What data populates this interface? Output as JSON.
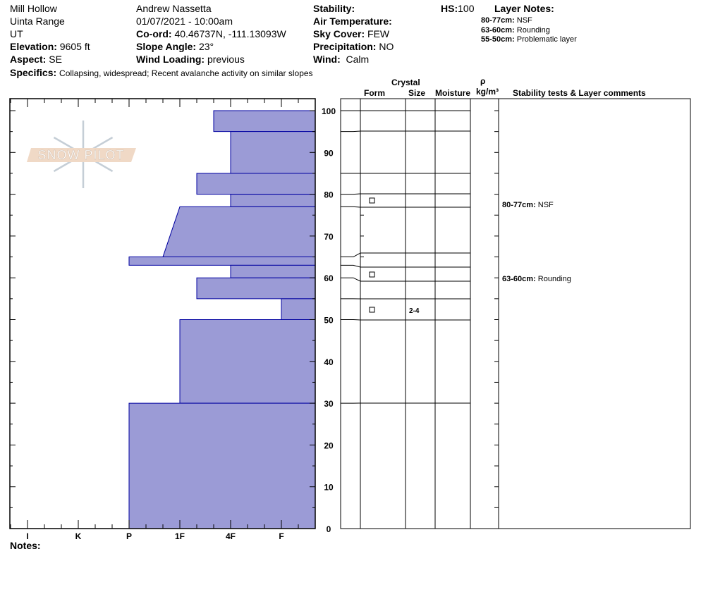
{
  "header": {
    "location": "Mill Hollow",
    "range": "Uinta Range",
    "state": "UT",
    "elevation_label": "Elevation:",
    "elevation": "9605 ft",
    "aspect_label": "Aspect:",
    "aspect": "SE",
    "observer": "Andrew Nassetta",
    "datetime": "01/07/2021 - 10:00am",
    "coord_label": "Co-ord:",
    "coord": "40.46737N, -111.13093W",
    "slope_label": "Slope Angle:",
    "slope": "23°",
    "wind_loading_label": "Wind Loading:",
    "wind_loading": "previous",
    "stability_label": "Stability:",
    "stability": "",
    "air_temp_label": "Air Temperature:",
    "air_temp": "",
    "sky_label": "Sky Cover:",
    "sky": "FEW",
    "precip_label": "Precipitation:",
    "precip": "NO",
    "wind_label": "Wind:",
    "wind": "Calm",
    "hs_label": "HS:",
    "hs": "100",
    "specifics_label": "Specifics:",
    "specifics": "Collapsing, widespread;  Recent avalanche activity on similar slopes"
  },
  "layer_notes": {
    "title": "Layer Notes:",
    "items": [
      {
        "range": "80-77cm:",
        "note": "NSF"
      },
      {
        "range": "63-60cm:",
        "note": "Rounding"
      },
      {
        "range": "55-50cm:",
        "note": "Problematic layer"
      }
    ]
  },
  "columns": {
    "crystal": "Crystal",
    "form": "Form",
    "size": "Size",
    "moisture": "Moisture",
    "rho": "ρ",
    "density_unit": "kg/m³",
    "comments": "Stability tests & Layer comments"
  },
  "logo": {
    "text": "SNOW PILOT",
    "colors": {
      "band": "#f0d9c6",
      "flake": "#c5ced6"
    }
  },
  "notes_label": "Notes:",
  "comments": [
    {
      "depth": 80,
      "range": "80-77cm:",
      "text": "NSF"
    },
    {
      "depth": 63,
      "range": "63-60cm:",
      "text": "Rounding"
    }
  ],
  "chart_data": {
    "type": "bar",
    "orientation": "horizontal",
    "fill_color": "#9b9bd6",
    "edge_color": "#0000a0",
    "xlabel_ticks": [
      "I",
      "K",
      "P",
      "1F",
      "4F",
      "F"
    ],
    "yticks": [
      0,
      10,
      20,
      30,
      40,
      50,
      60,
      70,
      80,
      90,
      100
    ],
    "ylim": [
      0,
      100
    ],
    "y_unit": "cm",
    "layers": [
      {
        "top": 100,
        "bottom": 95,
        "hardness_top": "4F+",
        "hardness_bottom": "4F+"
      },
      {
        "top": 95,
        "bottom": 85,
        "hardness_top": "4F",
        "hardness_bottom": "4F"
      },
      {
        "top": 85,
        "bottom": 80,
        "hardness_top": "1F-",
        "hardness_bottom": "1F-"
      },
      {
        "top": 80,
        "bottom": 77,
        "hardness_top": "4F",
        "hardness_bottom": "4F",
        "form": "faceted",
        "form_symbol": "□"
      },
      {
        "top": 77,
        "bottom": 65,
        "hardness_top": "1F",
        "hardness_bottom": "1F+"
      },
      {
        "top": 65,
        "bottom": 63,
        "hardness_top": "P",
        "hardness_bottom": "P"
      },
      {
        "top": 63,
        "bottom": 60,
        "hardness_top": "4F",
        "hardness_bottom": "4F",
        "form": "faceted",
        "form_symbol": "□"
      },
      {
        "top": 60,
        "bottom": 55,
        "hardness_top": "1F-",
        "hardness_bottom": "1F-"
      },
      {
        "top": 55,
        "bottom": 50,
        "hardness_top": "F",
        "hardness_bottom": "F",
        "form": "faceted",
        "form_symbol": "□",
        "size": "2-4"
      },
      {
        "top": 50,
        "bottom": 30,
        "hardness_top": "1F",
        "hardness_bottom": "1F"
      },
      {
        "top": 30,
        "bottom": 0,
        "hardness_top": "P",
        "hardness_bottom": "P"
      }
    ]
  }
}
